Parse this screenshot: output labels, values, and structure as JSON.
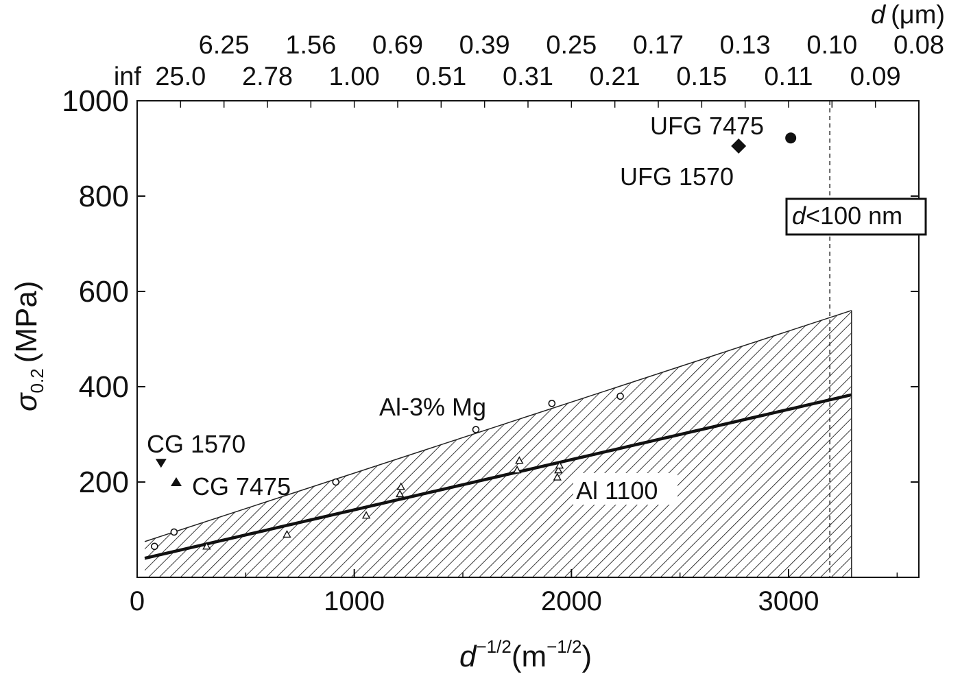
{
  "chart_data": {
    "type": "scatter",
    "xlabel": "d^-1/2 (m^-1/2)",
    "ylabel": "σ0.2 (MPa)",
    "xlim": [
      0,
      3600
    ],
    "ylim": [
      0,
      1000
    ],
    "x_ticks": [
      "0",
      "1000",
      "2000",
      "3000"
    ],
    "y_ticks": [
      "200",
      "400",
      "600",
      "800",
      "1000"
    ],
    "top_axis": {
      "label_var": "d",
      "label_unit": "(μm)",
      "row1": [
        {
          "label": "6.25",
          "x": 400
        },
        {
          "label": "1.56",
          "x": 800
        },
        {
          "label": "0.69",
          "x": 1200
        },
        {
          "label": "0.39",
          "x": 1600
        },
        {
          "label": "0.25",
          "x": 2000
        },
        {
          "label": "0.17",
          "x": 2400
        },
        {
          "label": "0.13",
          "x": 2800
        },
        {
          "label": "0.10",
          "x": 3200
        },
        {
          "label": "0.08",
          "x": 3600
        }
      ],
      "row2": [
        {
          "label": "inf",
          "x": 0
        },
        {
          "label": "25.0",
          "x": 200
        },
        {
          "label": "2.78",
          "x": 600
        },
        {
          "label": "1.00",
          "x": 1000
        },
        {
          "label": "0.51",
          "x": 1400
        },
        {
          "label": "0.31",
          "x": 1800
        },
        {
          "label": "0.21",
          "x": 2200
        },
        {
          "label": "0.15",
          "x": 2600
        },
        {
          "label": "0.11",
          "x": 3000
        },
        {
          "label": "0.09",
          "x": 3400
        }
      ]
    },
    "series": [
      {
        "name": "UFG 7475",
        "marker": "filled-circle",
        "x": [
          3010
        ],
        "y": [
          922
        ]
      },
      {
        "name": "UFG 1570",
        "marker": "filled-diamond",
        "x": [
          2770
        ],
        "y": [
          905
        ]
      },
      {
        "name": "CG 1570",
        "marker": "filled-down-triangle",
        "x": [
          110
        ],
        "y": [
          240
        ]
      },
      {
        "name": "CG 7475",
        "marker": "filled-up-triangle",
        "x": [
          180
        ],
        "y": [
          200
        ]
      },
      {
        "name": "Al-3% Mg",
        "marker": "open-circle",
        "x": [
          80,
          170,
          915,
          1560,
          1910,
          2225
        ],
        "y": [
          65,
          95,
          200,
          310,
          365,
          380
        ]
      },
      {
        "name": "Al 1100",
        "marker": "open-triangle",
        "x": [
          320,
          690,
          1055,
          1210,
          1215,
          1750,
          1760,
          1935,
          1940,
          1945
        ],
        "y": [
          65,
          90,
          130,
          175,
          190,
          225,
          245,
          210,
          225,
          235
        ]
      }
    ],
    "fit_line": {
      "x": [
        35,
        3290
      ],
      "y": [
        40,
        383
      ]
    },
    "scatter_band": {
      "x": [
        35,
        3290
      ],
      "lower": [
        0,
        0
      ],
      "upper": [
        75,
        560
      ]
    },
    "reference_line": {
      "x": 3190,
      "label_var": "d",
      "label_rest": "<100 nm"
    }
  }
}
